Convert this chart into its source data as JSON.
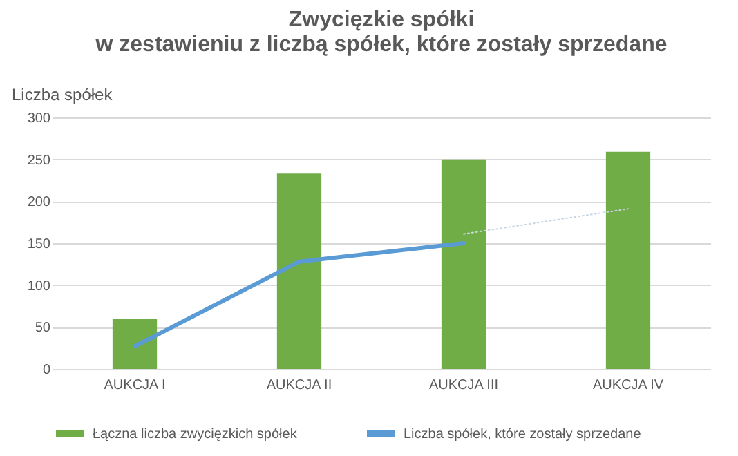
{
  "chart_data": {
    "type": "bar",
    "title": "Zwycięzkie spółki\nw zestawieniu z liczbą spółek, które zostały sprzedane",
    "ylabel": "Liczba spółek",
    "categories": [
      "AUKCJA I",
      "AUKCJA II",
      "AUKCJA III",
      "AUKCJA IV"
    ],
    "series": [
      {
        "name": "Łączna liczba zwycięzkich spółek",
        "color": "#70ad47",
        "values": [
          60,
          233,
          250,
          259
        ]
      },
      {
        "name": "Liczba spółek, które zostały sprzedane",
        "type": "line",
        "color": "#5b9bd5",
        "values": [
          27,
          128,
          150,
          null
        ]
      },
      {
        "type": "line",
        "color": "#c9d6e3",
        "line_style": "dotted",
        "values": [
          null,
          null,
          161,
          191
        ]
      }
    ],
    "ylim": [
      0,
      300
    ],
    "yticks": [
      0,
      50,
      100,
      150,
      200,
      250,
      300
    ],
    "grid": "y",
    "legend": "bottom"
  }
}
